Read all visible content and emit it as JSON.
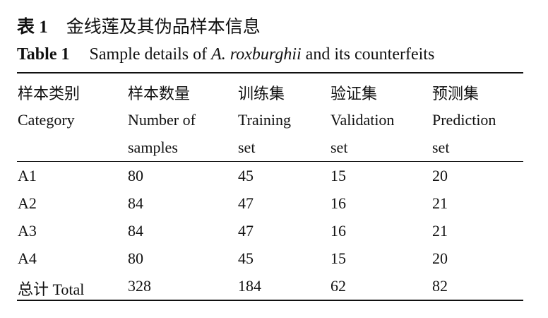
{
  "caption_cn": {
    "label": "表 1",
    "text": "金线莲及其伪品样本信息"
  },
  "caption_en": {
    "label": "Table 1",
    "prefix": "Sample details of ",
    "species": "A.  roxburghii",
    "suffix": " and its counterfeits"
  },
  "headers": [
    {
      "cn": "样本类别",
      "en1": "Category",
      "en2": ""
    },
    {
      "cn": "样本数量",
      "en1": "Number of",
      "en2": "samples"
    },
    {
      "cn": "训练集",
      "en1": "Training",
      "en2": "set"
    },
    {
      "cn": "验证集",
      "en1": "Validation",
      "en2": "set"
    },
    {
      "cn": "预测集",
      "en1": "Prediction",
      "en2": "set"
    }
  ],
  "rows": [
    [
      "A1",
      "80",
      "45",
      "15",
      "20"
    ],
    [
      "A2",
      "84",
      "47",
      "16",
      "21"
    ],
    [
      "A3",
      "84",
      "47",
      "16",
      "21"
    ],
    [
      "A4",
      "80",
      "45",
      "15",
      "20"
    ],
    [
      "总计 Total",
      "328",
      "184",
      "62",
      "82"
    ]
  ]
}
